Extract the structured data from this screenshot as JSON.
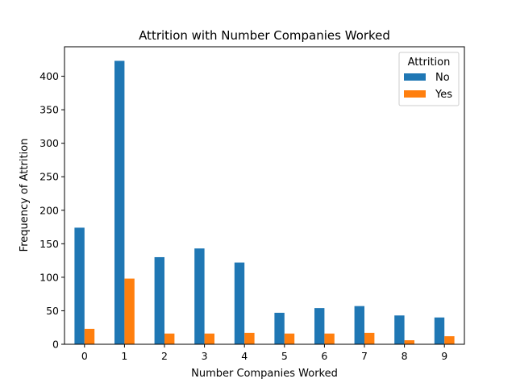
{
  "chart_data": {
    "type": "bar",
    "title": "Attrition with Number Companies Worked",
    "xlabel": "Number Companies Worked",
    "ylabel": "Frequency of Attrition",
    "categories": [
      "0",
      "1",
      "2",
      "3",
      "4",
      "5",
      "6",
      "7",
      "8",
      "9"
    ],
    "series": [
      {
        "name": "No",
        "color": "#1f77b4",
        "values": [
          174,
          423,
          130,
          143,
          122,
          47,
          54,
          57,
          43,
          40
        ]
      },
      {
        "name": "Yes",
        "color": "#ff7f0e",
        "values": [
          23,
          98,
          16,
          16,
          17,
          16,
          16,
          17,
          6,
          12
        ]
      }
    ],
    "ylim": [
      0,
      444
    ],
    "yticks": [
      0,
      50,
      100,
      150,
      200,
      250,
      300,
      350,
      400
    ],
    "legend": {
      "title": "Attrition",
      "placement": "top-right"
    },
    "grid": false
  }
}
